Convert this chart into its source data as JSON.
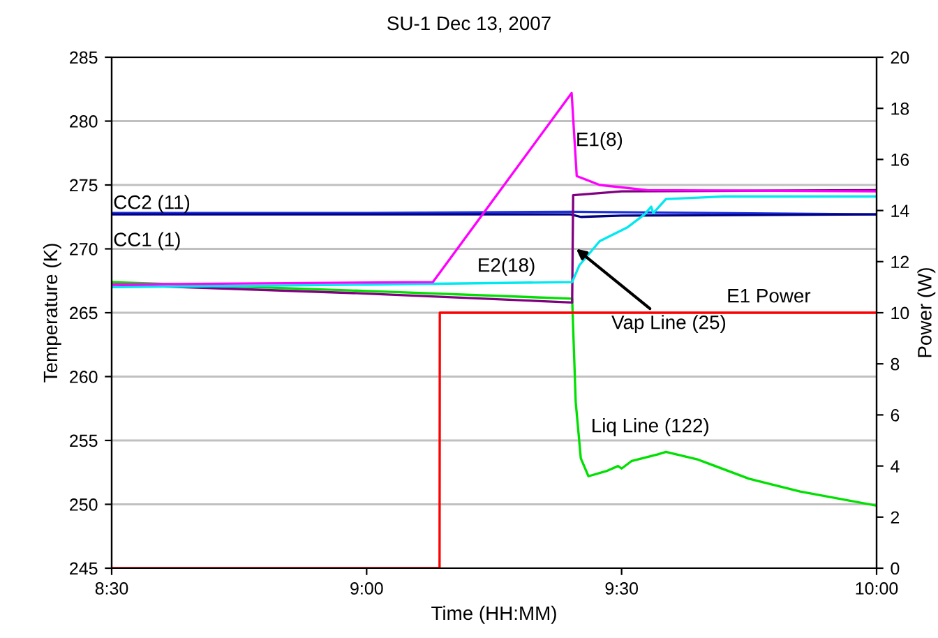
{
  "chart_data": {
    "type": "line",
    "title": "SU-1 Dec 13, 2007",
    "xlabel": "Time (HH:MM)",
    "ylabel": "Temperature (K)",
    "y2label": "Power (W)",
    "xlim": [
      8.5,
      10.0
    ],
    "xticks": [
      {
        "value": 8.5,
        "label": "8:30"
      },
      {
        "value": 9.0,
        "label": "9:00"
      },
      {
        "value": 9.5,
        "label": "9:30"
      },
      {
        "value": 10.0,
        "label": "10:00"
      }
    ],
    "ylim": [
      245,
      285
    ],
    "yticks": [
      245,
      250,
      255,
      260,
      265,
      270,
      275,
      280,
      285
    ],
    "y2lim": [
      0,
      20
    ],
    "y2ticks": [
      0,
      2,
      4,
      6,
      8,
      10,
      12,
      14,
      16,
      18,
      20
    ],
    "grid": "y",
    "legend": false,
    "marker": "none",
    "line_style": "solid",
    "series": [
      {
        "name": "CC2 (11)",
        "color": "#1c2fe0",
        "x": [
          8.5,
          9.0,
          9.4,
          10.0
        ],
        "values": [
          272.8,
          272.8,
          272.9,
          272.7
        ]
      },
      {
        "name": "CC1 (1)",
        "color": "#000080",
        "x": [
          8.5,
          9.0,
          9.4,
          9.42,
          9.5,
          10.0
        ],
        "values": [
          272.7,
          272.7,
          272.7,
          272.5,
          272.6,
          272.7
        ]
      },
      {
        "name": "Liq Line (122)",
        "color": "#00e000",
        "x": [
          8.5,
          9.0,
          9.403,
          9.41,
          9.42,
          9.435,
          9.47,
          9.493,
          9.5,
          9.52,
          9.57,
          9.587,
          9.65,
          9.75,
          9.85,
          10.0
        ],
        "values": [
          267.4,
          266.7,
          266.1,
          258.0,
          253.6,
          252.2,
          252.6,
          253.0,
          252.8,
          253.4,
          253.9,
          254.1,
          253.5,
          252.0,
          251.0,
          249.9
        ]
      },
      {
        "name": "Vap Line (25)",
        "color": "#800080",
        "x": [
          8.5,
          9.0,
          9.403,
          9.405,
          9.5,
          10.0
        ],
        "values": [
          267.2,
          266.5,
          265.8,
          274.2,
          274.5,
          274.6
        ]
      },
      {
        "name": "E2(18)",
        "color": "#00e8f0",
        "x": [
          8.5,
          9.0,
          9.403,
          9.417,
          9.457,
          9.512,
          9.545,
          9.558,
          9.562,
          9.587,
          9.7,
          10.0
        ],
        "values": [
          267.0,
          267.2,
          267.4,
          268.7,
          270.6,
          271.7,
          272.7,
          273.3,
          272.8,
          273.9,
          274.1,
          274.1
        ]
      },
      {
        "name": "E1(8)",
        "color": "#ff00ff",
        "x": [
          8.5,
          8.8,
          9.13,
          9.402,
          9.412,
          9.457,
          9.55,
          10.0
        ],
        "values": [
          267.2,
          267.3,
          267.4,
          282.2,
          275.7,
          275.0,
          274.6,
          274.5
        ]
      },
      {
        "name": "E1 Power",
        "color": "#ff0000",
        "axis": "y2",
        "x": [
          8.5,
          9.143,
          9.1435,
          10.0
        ],
        "values": [
          0,
          0,
          10,
          10
        ]
      }
    ]
  }
}
